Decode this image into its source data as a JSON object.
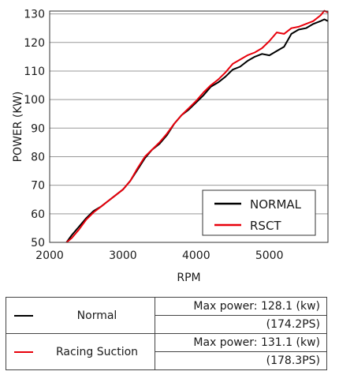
{
  "chart_data": {
    "type": "line",
    "xlabel": "RPM",
    "ylabel": "POWER (KW)",
    "xlim": [
      2000,
      5800
    ],
    "ylim": [
      50,
      131
    ],
    "xticks": [
      2000,
      3000,
      4000,
      5000
    ],
    "yticks": [
      50,
      60,
      70,
      80,
      90,
      100,
      110,
      120,
      130
    ],
    "grid": "horizontal",
    "legend_position": "bottom-right",
    "series": [
      {
        "name": "NORMAL",
        "color": "#000000",
        "x": [
          2230,
          2300,
          2400,
          2500,
          2600,
          2700,
          2800,
          2900,
          3000,
          3100,
          3200,
          3300,
          3400,
          3500,
          3600,
          3700,
          3800,
          3900,
          4000,
          4100,
          4200,
          4300,
          4400,
          4500,
          4600,
          4700,
          4800,
          4900,
          5000,
          5100,
          5200,
          5300,
          5400,
          5500,
          5600,
          5700,
          5750,
          5800
        ],
        "y": [
          50,
          52.5,
          55.5,
          58.5,
          61,
          62.5,
          64.5,
          66.5,
          68.5,
          71.5,
          75.5,
          79.5,
          82.5,
          84.5,
          87.5,
          91.5,
          94.5,
          96.5,
          99,
          101.5,
          104.5,
          106,
          108,
          110.5,
          111.5,
          113.5,
          115,
          116,
          115.5,
          117,
          118.5,
          123,
          124.5,
          125,
          126.5,
          127.5,
          128.1,
          127.5
        ]
      },
      {
        "name": "RSCT",
        "color": "#e8000b",
        "x": [
          2230,
          2300,
          2400,
          2500,
          2600,
          2700,
          2800,
          2900,
          3000,
          3100,
          3200,
          3300,
          3400,
          3500,
          3600,
          3700,
          3800,
          3900,
          4000,
          4100,
          4200,
          4300,
          4400,
          4500,
          4600,
          4700,
          4800,
          4900,
          5000,
          5100,
          5200,
          5300,
          5400,
          5500,
          5600,
          5700,
          5750,
          5800
        ],
        "y": [
          50,
          51.5,
          54.5,
          58,
          60.5,
          62.5,
          64.5,
          66.5,
          68.5,
          71.5,
          76,
          80,
          82.5,
          85,
          88,
          91.5,
          94.5,
          97,
          99.5,
          102.5,
          105,
          107,
          109.5,
          112.5,
          114,
          115.5,
          116.5,
          118,
          120.5,
          123.5,
          123,
          125,
          125.5,
          126.5,
          127.5,
          129.5,
          131.1,
          130.5
        ]
      }
    ]
  },
  "summary_table": {
    "rows": [
      {
        "name": "Normal",
        "color": "#000000",
        "max_power": "Max power: 128.1 (kw)",
        "ps": "(174.2PS)"
      },
      {
        "name": "Racing Suction",
        "color": "#e8000b",
        "max_power": "Max power: 131.1 (kw)",
        "ps": "(178.3PS)"
      }
    ]
  }
}
